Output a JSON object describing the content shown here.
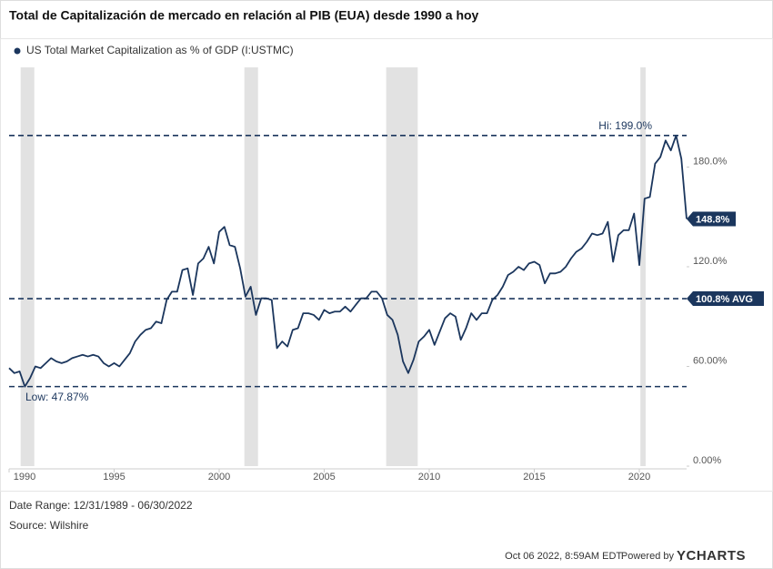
{
  "chart_data": {
    "type": "line",
    "title": "Total de Capitalización de mercado en relación al PIB (EUA) desde 1990 a hoy",
    "x": [
      1990,
      1990.25,
      1990.5,
      1990.75,
      1991,
      1991.25,
      1991.5,
      1991.75,
      1992,
      1992.25,
      1992.5,
      1992.75,
      1993,
      1993.25,
      1993.5,
      1993.75,
      1994,
      1994.25,
      1994.5,
      1994.75,
      1995,
      1995.25,
      1995.5,
      1995.75,
      1996,
      1996.25,
      1996.5,
      1996.75,
      1997,
      1997.25,
      1997.5,
      1997.75,
      1998,
      1998.25,
      1998.5,
      1998.75,
      1999,
      1999.25,
      1999.5,
      1999.75,
      2000,
      2000.25,
      2000.5,
      2000.75,
      2001,
      2001.25,
      2001.5,
      2001.75,
      2002,
      2002.25,
      2002.5,
      2002.75,
      2003,
      2003.25,
      2003.5,
      2003.75,
      2004,
      2004.25,
      2004.5,
      2004.75,
      2005,
      2005.25,
      2005.5,
      2005.75,
      2006,
      2006.25,
      2006.5,
      2006.75,
      2007,
      2007.25,
      2007.5,
      2007.75,
      2008,
      2008.25,
      2008.5,
      2008.75,
      2009,
      2009.25,
      2009.5,
      2009.75,
      2010,
      2010.25,
      2010.5,
      2010.75,
      2011,
      2011.25,
      2011.5,
      2011.75,
      2012,
      2012.25,
      2012.5,
      2012.75,
      2013,
      2013.25,
      2013.5,
      2013.75,
      2014,
      2014.25,
      2014.5,
      2014.75,
      2015,
      2015.25,
      2015.5,
      2015.75,
      2016,
      2016.25,
      2016.5,
      2016.75,
      2017,
      2017.25,
      2017.5,
      2017.75,
      2018,
      2018.25,
      2018.5,
      2018.75,
      2019,
      2019.25,
      2019.5,
      2019.75,
      2020,
      2020.25,
      2020.5,
      2020.75,
      2021,
      2021.25,
      2021.5,
      2021.75,
      2022,
      2022.25
    ],
    "series": [
      {
        "name": "US Total Market Capitalization as % of GDP (I:USTMC)",
        "color": "#1b365d",
        "values": [
          59,
          56,
          57,
          47.87,
          53,
          60,
          59,
          62,
          65,
          63,
          62,
          63,
          65,
          66,
          67,
          66,
          67,
          66,
          62,
          60,
          62,
          60,
          64,
          68,
          75,
          79,
          82,
          83,
          87,
          86,
          100,
          105,
          105,
          118,
          119,
          103,
          122,
          125,
          132,
          122,
          141,
          144,
          133,
          132,
          119,
          102,
          108,
          91,
          101,
          101,
          100,
          71,
          75,
          72,
          82,
          83,
          92,
          92,
          91,
          88,
          94,
          92,
          93,
          93,
          96,
          93,
          97,
          101,
          101,
          105,
          105,
          101,
          91,
          88,
          79,
          63,
          56,
          64,
          75,
          78,
          82,
          73,
          81,
          89,
          92,
          90,
          76,
          83,
          92,
          88,
          92,
          92,
          100,
          103,
          108,
          115,
          117,
          120,
          118,
          122,
          123,
          121,
          110,
          116,
          116,
          117,
          120,
          125,
          129,
          131,
          135,
          140,
          139,
          140,
          147,
          123,
          139,
          142,
          142,
          152,
          121,
          161,
          162,
          182,
          186,
          196,
          190,
          199,
          185,
          148.8
        ]
      }
    ],
    "xlim": [
      1990,
      2022.25
    ],
    "xticks": [
      1990,
      1995,
      2000,
      2005,
      2010,
      2015,
      2020
    ],
    "ylim": [
      0,
      240
    ],
    "yticks": [
      {
        "value": 0,
        "label": "0.00%"
      },
      {
        "value": 60,
        "label": "60.00%"
      },
      {
        "value": 120,
        "label": "120.0%"
      },
      {
        "value": 180,
        "label": "180.0%"
      }
    ],
    "grid": false,
    "recessions": [
      [
        1990.55,
        1991.2
      ],
      [
        2001.2,
        2001.85
      ],
      [
        2007.95,
        2009.45
      ],
      [
        2020.05,
        2020.3
      ]
    ],
    "recession_color": "#e2e2e2",
    "reference_lines": [
      {
        "value": 199,
        "label": "Hi: 199.0%"
      },
      {
        "value": 100.8,
        "label": "100.8% AVG"
      },
      {
        "value": 47.87,
        "label": "Low: 47.87%"
      }
    ],
    "end_label": {
      "value": 148.8,
      "label": "148.8%"
    }
  },
  "footer": {
    "date_range": "Date Range: 12/31/1989 - 06/30/2022",
    "source": "Source: Wilshire",
    "timestamp": "Oct 06 2022, 8:59AM EDT.",
    "powered_by": "Powered by",
    "brand": "YCHARTS"
  }
}
